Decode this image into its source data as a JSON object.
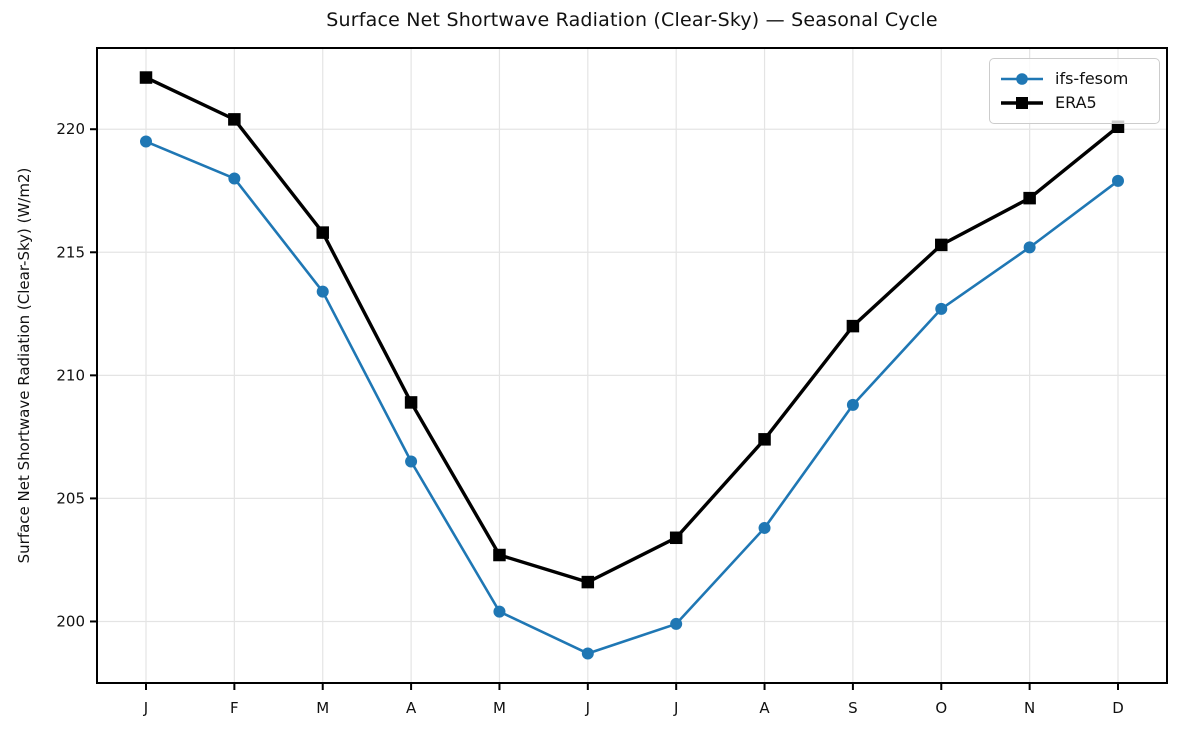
{
  "chart_data": {
    "type": "line",
    "title": "Surface Net Shortwave Radiation (Clear-Sky) — Seasonal Cycle",
    "xlabel": "",
    "ylabel": "Surface Net Shortwave Radiation (Clear-Sky) (W/m2)",
    "categories": [
      "J",
      "F",
      "M",
      "A",
      "M",
      "J",
      "J",
      "A",
      "S",
      "O",
      "N",
      "D"
    ],
    "yticks": [
      200,
      205,
      210,
      215,
      220
    ],
    "ylim": [
      197.5,
      223.3
    ],
    "grid": true,
    "legend_position": "upper right",
    "series": [
      {
        "name": "ifs-fesom",
        "color": "#1f77b4",
        "marker": "circle",
        "values": [
          219.5,
          218.0,
          213.4,
          206.5,
          200.4,
          198.7,
          199.9,
          203.8,
          208.8,
          212.7,
          215.2,
          217.9
        ]
      },
      {
        "name": "ERA5",
        "color": "#000000",
        "marker": "square",
        "values": [
          222.1,
          220.4,
          215.8,
          208.9,
          202.7,
          201.6,
          203.4,
          207.4,
          212.0,
          215.3,
          217.2,
          220.1
        ]
      }
    ],
    "colors": {
      "grid": "#e4e4e4",
      "spine": "#000000",
      "tick_label": "#111111"
    }
  }
}
